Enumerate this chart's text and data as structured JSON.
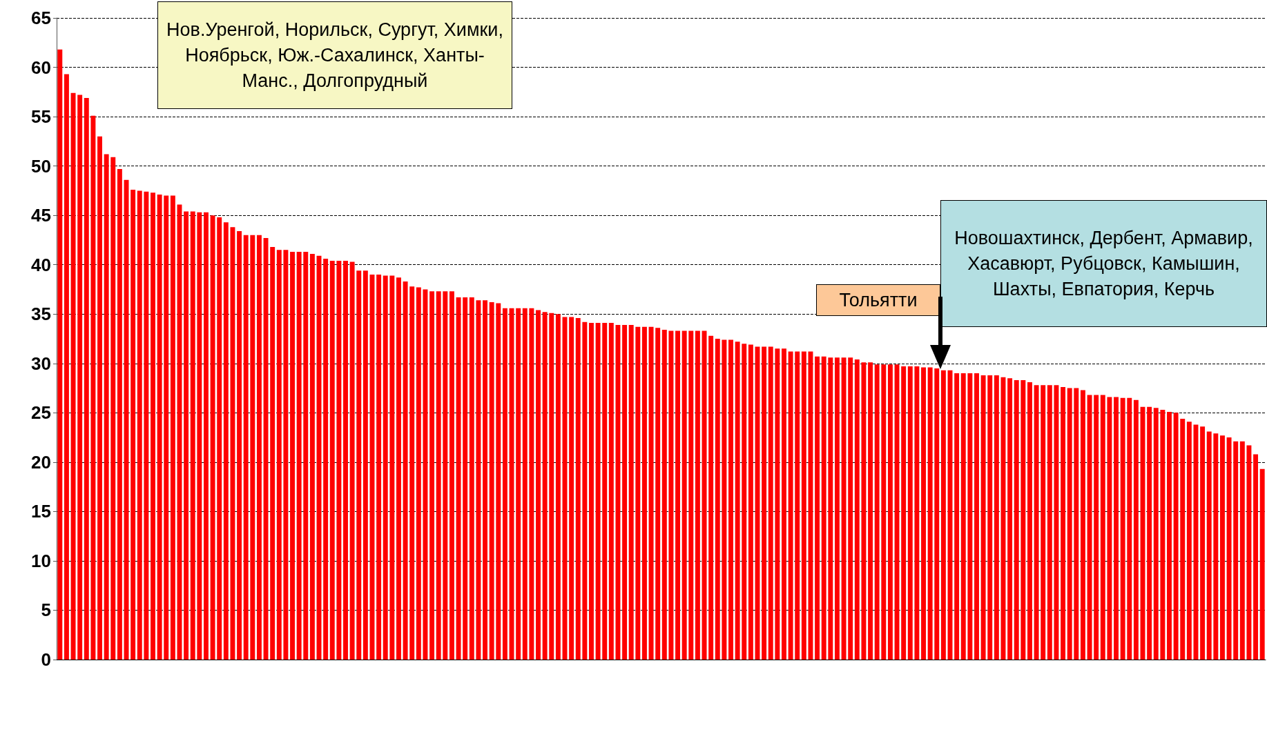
{
  "chart_data": {
    "type": "bar",
    "categories": [
      null,
      null,
      null,
      null,
      null,
      null,
      null,
      null,
      null,
      null,
      null,
      null,
      null,
      null,
      null,
      null,
      null,
      null,
      null,
      null,
      null,
      null,
      null,
      null,
      null,
      null,
      null,
      null,
      null,
      null,
      null,
      null,
      null,
      null,
      null,
      null,
      null,
      null,
      null,
      null,
      null,
      null,
      null,
      null,
      null,
      null,
      null,
      null,
      null,
      null,
      null,
      null,
      null,
      null,
      null,
      null,
      null,
      null,
      null,
      null,
      null,
      null,
      null,
      null,
      null,
      null,
      null,
      null,
      null,
      null,
      null,
      null,
      null,
      null,
      null,
      null,
      null,
      null,
      null,
      null,
      null,
      null,
      null,
      null,
      null,
      null,
      null,
      null,
      null,
      null,
      null,
      null,
      null,
      null,
      null,
      null,
      null,
      null,
      null,
      null,
      null,
      null,
      null,
      null,
      null,
      null,
      null,
      null,
      null,
      null,
      null,
      null,
      null,
      null,
      null,
      null,
      null,
      null,
      null,
      null,
      null,
      null,
      null,
      null,
      null,
      null,
      null,
      null,
      null,
      null,
      null,
      null,
      null,
      null,
      null,
      null,
      null,
      null,
      null,
      null,
      null,
      null,
      null,
      null,
      null,
      null,
      null,
      null,
      null,
      null,
      null,
      null,
      null,
      null,
      null,
      null,
      null,
      null,
      null,
      null,
      null,
      null,
      null,
      null,
      null,
      null,
      null,
      null,
      null,
      null,
      null,
      null,
      null,
      null,
      null,
      null,
      null,
      null,
      null,
      null,
      null,
      null
    ],
    "values": [
      61.8,
      59.3,
      57.4,
      57.2,
      56.9,
      55.1,
      53.0,
      51.2,
      50.9,
      49.7,
      48.6,
      47.6,
      47.5,
      47.4,
      47.3,
      47.1,
      47.0,
      47.0,
      46.1,
      45.4,
      45.4,
      45.3,
      45.3,
      45.0,
      44.8,
      44.3,
      43.8,
      43.4,
      43.0,
      43.0,
      43.0,
      42.7,
      41.8,
      41.5,
      41.5,
      41.3,
      41.3,
      41.3,
      41.1,
      40.9,
      40.6,
      40.4,
      40.4,
      40.4,
      40.3,
      39.4,
      39.4,
      39.0,
      39.0,
      38.9,
      38.9,
      38.7,
      38.3,
      37.8,
      37.7,
      37.5,
      37.3,
      37.3,
      37.3,
      37.3,
      36.7,
      36.7,
      36.7,
      36.4,
      36.4,
      36.2,
      36.1,
      35.6,
      35.6,
      35.6,
      35.6,
      35.6,
      35.4,
      35.2,
      35.1,
      35.0,
      34.7,
      34.7,
      34.6,
      34.2,
      34.1,
      34.1,
      34.1,
      34.1,
      33.9,
      33.9,
      33.9,
      33.7,
      33.7,
      33.7,
      33.6,
      33.4,
      33.3,
      33.3,
      33.3,
      33.3,
      33.3,
      33.3,
      32.8,
      32.5,
      32.4,
      32.4,
      32.2,
      32.0,
      31.9,
      31.7,
      31.7,
      31.7,
      31.5,
      31.5,
      31.2,
      31.2,
      31.2,
      31.2,
      30.7,
      30.7,
      30.6,
      30.6,
      30.6,
      30.6,
      30.4,
      30.1,
      30.1,
      29.9,
      29.9,
      29.9,
      29.9,
      29.7,
      29.7,
      29.7,
      29.6,
      29.6,
      29.5,
      29.3,
      29.3,
      29.0,
      29.0,
      29.0,
      29.0,
      28.8,
      28.8,
      28.8,
      28.6,
      28.5,
      28.3,
      28.3,
      28.1,
      27.8,
      27.8,
      27.8,
      27.8,
      27.6,
      27.5,
      27.5,
      27.3,
      26.8,
      26.8,
      26.8,
      26.6,
      26.6,
      26.5,
      26.5,
      26.3,
      25.6,
      25.6,
      25.5,
      25.3,
      25.1,
      25.0,
      24.4,
      24.1,
      23.8,
      23.6,
      23.1,
      22.9,
      22.7,
      22.5,
      22.1,
      22.1,
      21.7,
      20.8,
      19.3
    ],
    "color": "#ff0000",
    "ylim": [
      0,
      65
    ],
    "yticks": [
      0,
      5,
      10,
      15,
      20,
      25,
      30,
      35,
      40,
      45,
      50,
      55,
      60,
      65
    ],
    "grid": "y",
    "annotations": [
      "Нов.Уренгой, Норильск, Сургут, Химки, Ноябрьск, Юж.-Сахалинск, Ханты-Манс., Долгопрудный",
      "Тольятти",
      "Новошахтинск, Дербент, Армавир, Хасавюрт, Рубцовск, Камышин, Шахты, Евпатория, Керчь"
    ]
  }
}
